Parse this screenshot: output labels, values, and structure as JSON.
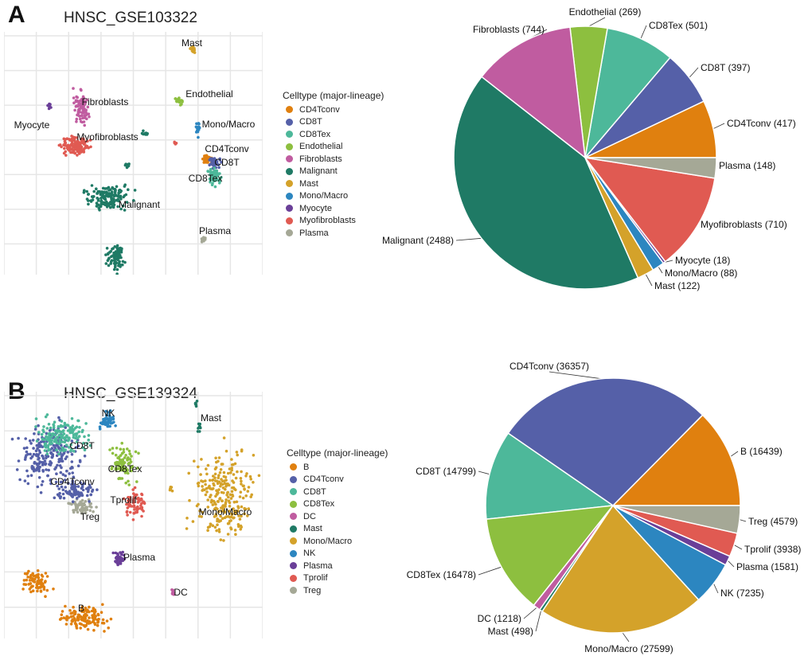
{
  "panels": [
    {
      "letter": "A",
      "title": "HNSC_GSE103322",
      "legend_title": "Celltype (major-lineage)"
    },
    {
      "letter": "B",
      "title": "HNSC_GSE139324",
      "legend_title": "Celltype (major-lineage)"
    }
  ],
  "chart_data": [
    {
      "type": "scatter",
      "title": "HNSC_GSE103322",
      "legend_title": "Celltype (major-lineage)",
      "legend_placement": "right",
      "cluster_labels": [
        "Mast",
        "Fibroblasts",
        "Endothelial",
        "Mono/Macro",
        "Myocyte",
        "Myofibroblasts",
        "CD4Tconv",
        "CD8T",
        "CD8Tex",
        "Malignant",
        "Plasma"
      ],
      "categories": [
        "CD4Tconv",
        "CD8T",
        "CD8Tex",
        "Endothelial",
        "Fibroblasts",
        "Malignant",
        "Mast",
        "Mono/Macro",
        "Myocyte",
        "Myofibroblasts",
        "Plasma"
      ],
      "colors": [
        "#E0800F",
        "#5560A8",
        "#4DB89A",
        "#8DBF3F",
        "#C05CA0",
        "#1F7A65",
        "#D4A22A",
        "#2C86C0",
        "#6A3F98",
        "#E05A52",
        "#A5A896"
      ]
    },
    {
      "type": "pie",
      "categories": [
        "CD4Tconv",
        "CD8T",
        "CD8Tex",
        "Endothelial",
        "Fibroblasts",
        "Malignant",
        "Mast",
        "Mono/Macro",
        "Myocyte",
        "Myofibroblasts",
        "Plasma"
      ],
      "values": [
        417,
        397,
        501,
        269,
        744,
        2488,
        122,
        88,
        18,
        710,
        148
      ],
      "labels": [
        "CD4Tconv (417)",
        "CD8T (397)",
        "CD8Tex (501)",
        "Endothelial (269)",
        "Fibroblasts (744)",
        "Malignant (2488)",
        "Mast (122)",
        "Mono/Macro (88)",
        "Myocyte (18)",
        "Myofibroblasts (710)",
        "Plasma (148)"
      ],
      "colors": [
        "#E0800F",
        "#5560A8",
        "#4DB89A",
        "#8DBF3F",
        "#C05CA0",
        "#1F7A65",
        "#D4A22A",
        "#2C86C0",
        "#6A3F98",
        "#E05A52",
        "#A5A896"
      ]
    },
    {
      "type": "scatter",
      "title": "HNSC_GSE139324",
      "legend_title": "Celltype (major-lineage)",
      "legend_placement": "right",
      "cluster_labels": [
        "NK",
        "Mast",
        "CD8T",
        "CD8Tex",
        "CD4Tconv",
        "Tprolif",
        "Treg",
        "Mono/Macro",
        "Plasma",
        "DC",
        "B"
      ],
      "categories": [
        "B",
        "CD4Tconv",
        "CD8T",
        "CD8Tex",
        "DC",
        "Mast",
        "Mono/Macro",
        "NK",
        "Plasma",
        "Tprolif",
        "Treg"
      ],
      "colors": [
        "#E0800F",
        "#5560A8",
        "#4DB89A",
        "#8DBF3F",
        "#C05CA0",
        "#1F7A65",
        "#D4A22A",
        "#2C86C0",
        "#6A3F98",
        "#E05A52",
        "#A5A896"
      ]
    },
    {
      "type": "pie",
      "categories": [
        "B",
        "CD4Tconv",
        "CD8T",
        "CD8Tex",
        "DC",
        "Mast",
        "Mono/Macro",
        "NK",
        "Plasma",
        "Tprolif",
        "Treg"
      ],
      "values": [
        16439,
        36357,
        14799,
        16478,
        1218,
        498,
        27599,
        7235,
        1581,
        3938,
        4579
      ],
      "labels": [
        "B (16439)",
        "CD4Tconv (36357)",
        "CD8T (14799)",
        "CD8Tex (16478)",
        "DC (1218)",
        "Mast (498)",
        "Mono/Macro (27599)",
        "NK (7235)",
        "Plasma (1581)",
        "Tprolif (3938)",
        "Treg (4579)"
      ],
      "colors": [
        "#E0800F",
        "#5560A8",
        "#4DB89A",
        "#8DBF3F",
        "#C05CA0",
        "#1F7A65",
        "#D4A22A",
        "#2C86C0",
        "#6A3F98",
        "#E05A52",
        "#A5A896"
      ]
    }
  ]
}
